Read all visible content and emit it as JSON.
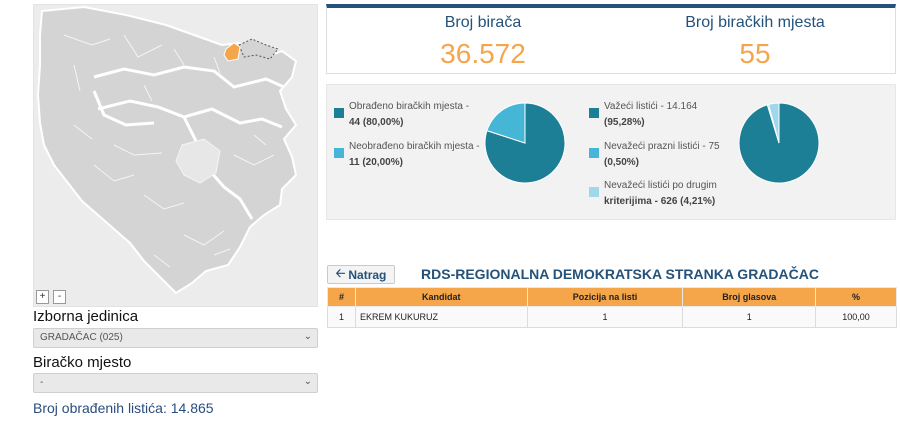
{
  "map": {
    "zoom_in_label": "+",
    "zoom_out_label": "-",
    "colors": {
      "background": "#ececec",
      "land": "#d4d4d4",
      "border": "#ffffff",
      "selected": "#f5a54a",
      "hover": "#e7e7e7"
    }
  },
  "filters": {
    "unit_label": "Izborna jedinica",
    "unit_value": "GRADAČAC (025)",
    "station_label": "Biračko mjesto",
    "station_value": "-",
    "processed_line": "Broj obrađenih listića: 14.865"
  },
  "stats": {
    "voters_title": "Broj birača",
    "voters_value": "36.572",
    "stations_title": "Broj biračkih mjesta",
    "stations_value": "55"
  },
  "pie_left": {
    "legend": [
      {
        "line1": "Obrađeno biračkih mjesta -",
        "line2": "44 (80,00%)",
        "color": "#1d7f95"
      },
      {
        "line1": "Neobrađeno biračkih mjesta -",
        "line2": "11 (20,00%)",
        "color": "#45b6d6"
      }
    ],
    "values": [
      80.0,
      20.0
    ]
  },
  "pie_right": {
    "legend": [
      {
        "line1": "Važeći listići - 14.164",
        "line2": "(95,28%)",
        "color": "#1d7f95"
      },
      {
        "line1": "Nevažeći prazni listići - 75",
        "line2": "(0,50%)",
        "color": "#45b6d6"
      },
      {
        "line1": "Nevažeći listići po drugim",
        "line2": "kriterijima - 626 (4,21%)",
        "color": "#9fd8ea"
      }
    ],
    "values": [
      95.28,
      0.5,
      4.21
    ]
  },
  "results": {
    "back_label": "Natrag",
    "party": "RDS-REGIONALNA DEMOKRATSKA STRANKA GRADAČAC",
    "columns": [
      "#",
      "Kandidat",
      "Pozicija na listi",
      "Broj glasova",
      "%"
    ],
    "rows": [
      [
        "1",
        "EKREM KUKURUZ",
        "1",
        "1",
        "100,00"
      ]
    ]
  }
}
